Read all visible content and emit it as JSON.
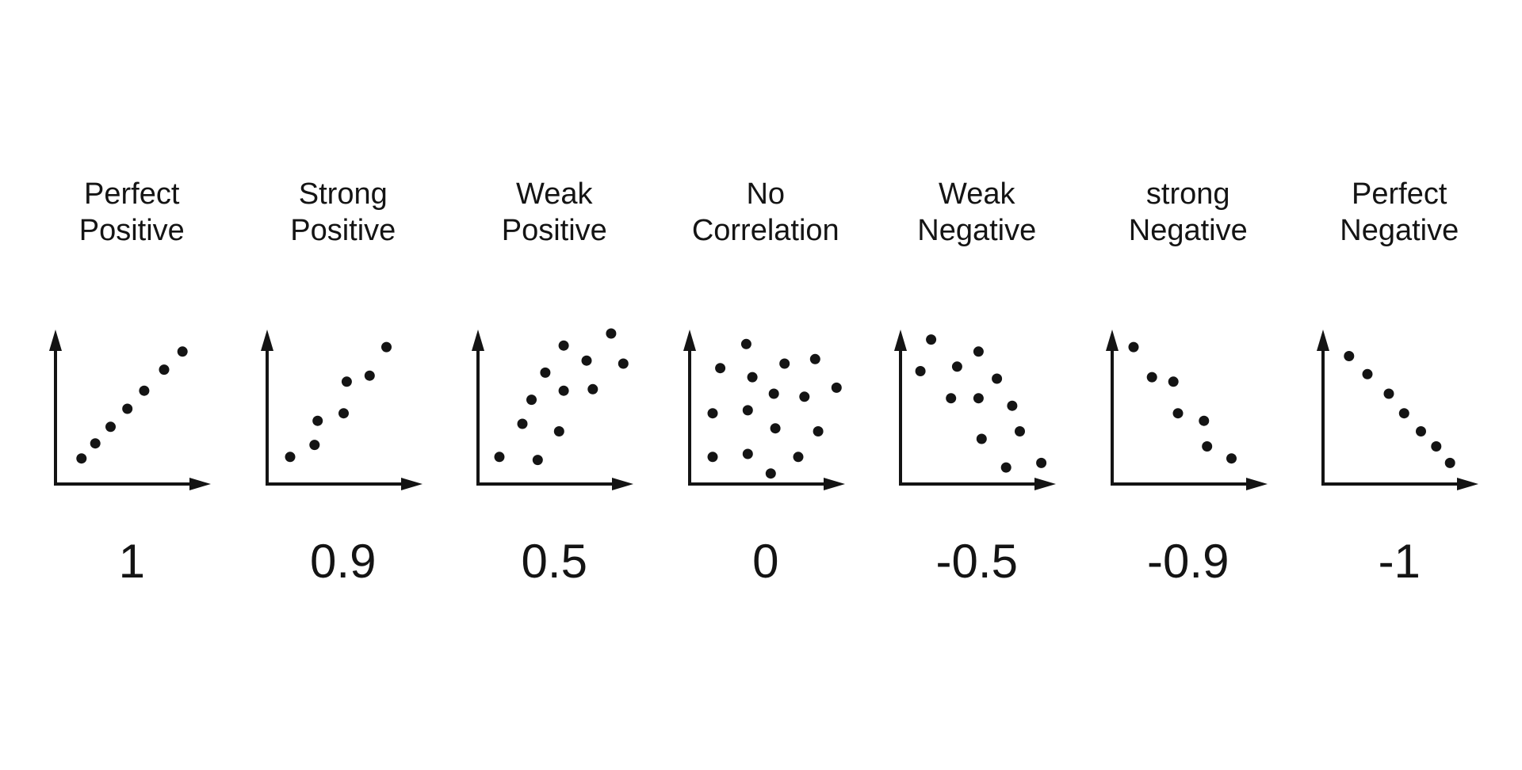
{
  "style": {
    "background": "#ffffff",
    "ink": "#141414",
    "point_color": "#141414",
    "axis_color": "#141414"
  },
  "chart_data": [
    {
      "type": "scatter",
      "title": "Perfect Positive",
      "title_lines": [
        "Perfect",
        "Positive"
      ],
      "correlation": "1",
      "x": [
        0.17,
        0.26,
        0.36,
        0.47,
        0.58,
        0.71,
        0.83
      ],
      "y": [
        0.17,
        0.27,
        0.38,
        0.5,
        0.62,
        0.76,
        0.88
      ],
      "xlim": [
        0,
        1
      ],
      "ylim": [
        0,
        1
      ],
      "xlabel": "",
      "ylabel": "",
      "axes": "arrow axes, no ticks, no gridlines"
    },
    {
      "type": "scatter",
      "title": "Strong Positive",
      "title_lines": [
        "Strong",
        "Positive"
      ],
      "correlation": "0.9",
      "x": [
        0.15,
        0.31,
        0.33,
        0.5,
        0.52,
        0.67,
        0.78
      ],
      "y": [
        0.18,
        0.26,
        0.42,
        0.47,
        0.68,
        0.72,
        0.91
      ],
      "xlim": [
        0,
        1
      ],
      "ylim": [
        0,
        1
      ],
      "xlabel": "",
      "ylabel": "",
      "axes": "arrow axes, no ticks, no gridlines"
    },
    {
      "type": "scatter",
      "title": "Weak Positive",
      "title_lines": [
        "Weak",
        "Positive"
      ],
      "correlation": "0.5",
      "x": [
        0.14,
        0.29,
        0.35,
        0.39,
        0.44,
        0.53,
        0.56,
        0.56,
        0.71,
        0.75,
        0.87,
        0.95
      ],
      "y": [
        0.18,
        0.4,
        0.56,
        0.16,
        0.74,
        0.35,
        0.62,
        0.92,
        0.82,
        0.63,
        1.0,
        0.8
      ],
      "xlim": [
        0,
        1
      ],
      "ylim": [
        0,
        1
      ],
      "xlabel": "",
      "ylabel": "",
      "axes": "arrow axes, no ticks, no gridlines"
    },
    {
      "type": "scatter",
      "title": "No Correlation",
      "title_lines": [
        "No",
        "Correlation"
      ],
      "correlation": "0",
      "x": [
        0.15,
        0.15,
        0.2,
        0.37,
        0.38,
        0.38,
        0.41,
        0.53,
        0.55,
        0.56,
        0.62,
        0.71,
        0.75,
        0.82,
        0.84,
        0.96
      ],
      "y": [
        0.47,
        0.18,
        0.77,
        0.93,
        0.2,
        0.49,
        0.71,
        0.07,
        0.6,
        0.37,
        0.8,
        0.18,
        0.58,
        0.83,
        0.35,
        0.64
      ],
      "xlim": [
        0,
        1
      ],
      "ylim": [
        0,
        1
      ],
      "xlabel": "",
      "ylabel": "",
      "axes": "arrow axes, no ticks, no gridlines"
    },
    {
      "type": "scatter",
      "title": "Weak Negative",
      "title_lines": [
        "Weak",
        "Negative"
      ],
      "correlation": "-0.5",
      "x": [
        0.13,
        0.2,
        0.33,
        0.37,
        0.51,
        0.51,
        0.53,
        0.63,
        0.69,
        0.73,
        0.78,
        0.92
      ],
      "y": [
        0.75,
        0.96,
        0.57,
        0.78,
        0.88,
        0.57,
        0.3,
        0.7,
        0.11,
        0.52,
        0.35,
        0.14
      ],
      "xlim": [
        0,
        1
      ],
      "ylim": [
        0,
        1
      ],
      "xlabel": "",
      "ylabel": "",
      "axes": "arrow axes, no ticks, no gridlines"
    },
    {
      "type": "scatter",
      "title": "strong Negative",
      "title_lines": [
        "strong",
        "Negative"
      ],
      "correlation": "-0.9",
      "x": [
        0.14,
        0.26,
        0.4,
        0.43,
        0.6,
        0.62,
        0.78
      ],
      "y": [
        0.91,
        0.71,
        0.68,
        0.47,
        0.42,
        0.25,
        0.17
      ],
      "xlim": [
        0,
        1
      ],
      "ylim": [
        0,
        1
      ],
      "xlabel": "",
      "ylabel": "",
      "axes": "arrow axes, no ticks, no gridlines"
    },
    {
      "type": "scatter",
      "title": "Perfect Negative",
      "title_lines": [
        "Perfect",
        "Negative"
      ],
      "correlation": "-1",
      "x": [
        0.17,
        0.29,
        0.43,
        0.53,
        0.64,
        0.74,
        0.83
      ],
      "y": [
        0.85,
        0.73,
        0.6,
        0.47,
        0.35,
        0.25,
        0.14
      ],
      "xlim": [
        0,
        1
      ],
      "ylim": [
        0,
        1
      ],
      "xlabel": "",
      "ylabel": "",
      "axes": "arrow axes, no ticks, no gridlines"
    }
  ]
}
